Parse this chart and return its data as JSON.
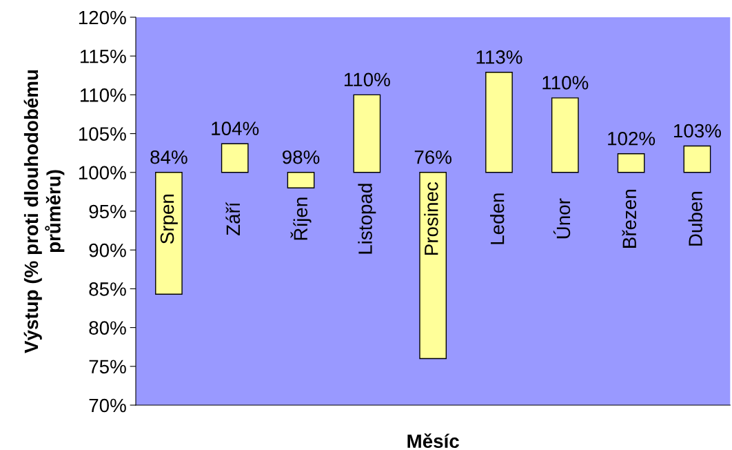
{
  "chart_data": {
    "type": "bar",
    "xlabel": "Měsíc",
    "ylabel": "Výstup (% proti dlouhodobému\nprůměru)",
    "categories": [
      "Srpen",
      "Září",
      "Říjen",
      "Listopad",
      "Prosinec",
      "Leden",
      "Únor",
      "Březen",
      "Duben"
    ],
    "base": [
      100,
      100,
      100,
      100,
      100,
      100,
      100,
      100,
      100
    ],
    "values": [
      -15.7,
      3.7,
      -2.0,
      10.0,
      -24.0,
      12.9,
      9.6,
      2.4,
      3.4
    ],
    "value_labels": [
      "84%",
      "104%",
      "98%",
      "110%",
      "76%",
      "113%",
      "110%",
      "102%",
      "103%"
    ],
    "color": "#ffff99",
    "ylim": [
      70,
      120
    ],
    "yticks": [
      {
        "value": 70,
        "label": "70%"
      },
      {
        "value": 75,
        "label": "75%"
      },
      {
        "value": 80,
        "label": "80%"
      },
      {
        "value": 85,
        "label": "85%"
      },
      {
        "value": 90,
        "label": "90%"
      },
      {
        "value": 95,
        "label": "95%"
      },
      {
        "value": 100,
        "label": "100%"
      },
      {
        "value": 105,
        "label": "105%"
      },
      {
        "value": 110,
        "label": "110%"
      },
      {
        "value": 115,
        "label": "115%"
      },
      {
        "value": 120,
        "label": "120%"
      }
    ],
    "grid": false,
    "legend": false
  }
}
